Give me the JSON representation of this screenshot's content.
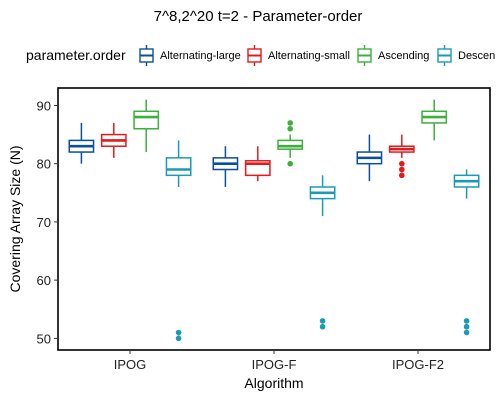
{
  "chart_data": {
    "type": "box",
    "title": "7^8,2^20 t=2 - Parameter-order",
    "xlabel": "Algorithm",
    "ylabel": "Covering Array Size (N)",
    "ylim": [
      48,
      93
    ],
    "yticks": [
      50,
      60,
      70,
      80,
      90
    ],
    "grid": false,
    "legend_title": "parameter.order",
    "legend_placement": "top",
    "categories": [
      "IPOG",
      "IPOG-F",
      "IPOG-F2"
    ],
    "series": [
      {
        "name": "Alternating-large",
        "color": "#0b4f9c",
        "boxes": [
          {
            "min": 80,
            "q1": 82,
            "median": 83,
            "q3": 84,
            "max": 87,
            "outliers": []
          },
          {
            "min": 76,
            "q1": 79,
            "median": 80,
            "q3": 81,
            "max": 83,
            "outliers": []
          },
          {
            "min": 77,
            "q1": 80,
            "median": 81,
            "q3": 82,
            "max": 85,
            "outliers": []
          }
        ]
      },
      {
        "name": "Alternating-small",
        "color": "#e41a1c",
        "boxes": [
          {
            "min": 81,
            "q1": 83,
            "median": 84,
            "q3": 85,
            "max": 87,
            "outliers": []
          },
          {
            "min": 77,
            "q1": 78,
            "median": 80,
            "q3": 80.5,
            "max": 83,
            "outliers": []
          },
          {
            "min": 81,
            "q1": 82,
            "median": 82.5,
            "q3": 83,
            "max": 85,
            "outliers": [
              78,
              79,
              80
            ]
          }
        ]
      },
      {
        "name": "Ascending",
        "color": "#3bb03b",
        "boxes": [
          {
            "min": 82,
            "q1": 86,
            "median": 88,
            "q3": 89,
            "max": 91,
            "outliers": []
          },
          {
            "min": 81,
            "q1": 82.5,
            "median": 83,
            "q3": 84,
            "max": 85,
            "outliers": [
              80,
              86,
              87
            ]
          },
          {
            "min": 84,
            "q1": 87,
            "median": 88,
            "q3": 89,
            "max": 91,
            "outliers": []
          }
        ]
      },
      {
        "name": "Descen",
        "color": "#1a9bb5",
        "boxes": [
          {
            "min": 76,
            "q1": 78,
            "median": 79,
            "q3": 81,
            "max": 84,
            "outliers": [
              50,
              51
            ]
          },
          {
            "min": 71,
            "q1": 74,
            "median": 75,
            "q3": 76,
            "max": 78,
            "outliers": [
              52,
              53
            ]
          },
          {
            "min": 74,
            "q1": 76,
            "median": 77,
            "q3": 78,
            "max": 79,
            "outliers": [
              51,
              52,
              53
            ]
          }
        ]
      }
    ]
  }
}
